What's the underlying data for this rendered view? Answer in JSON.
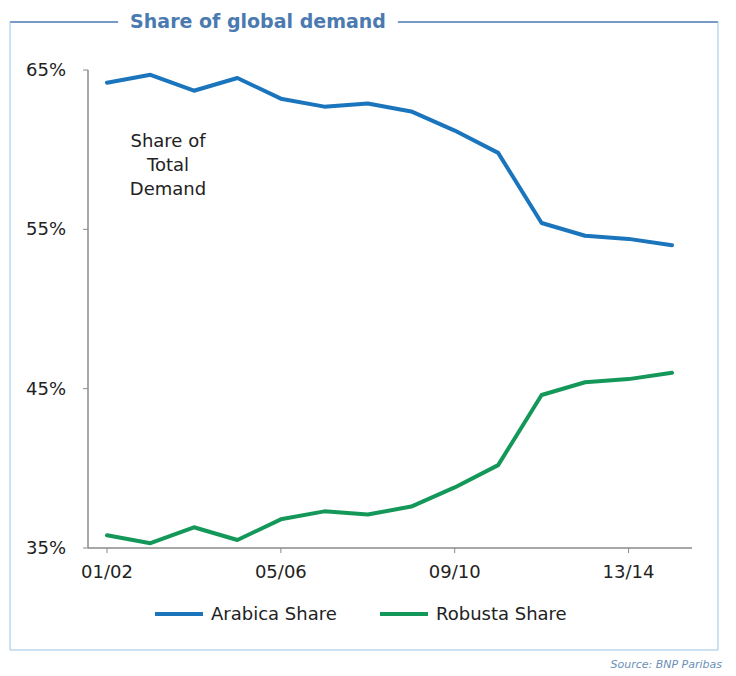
{
  "chart_data": {
    "type": "line",
    "title": "Share of global demand",
    "annotations": [
      "Share of",
      "Total",
      "Demand"
    ],
    "source": "Source: BNP Paribas",
    "categories": [
      "01/02",
      null,
      null,
      null,
      "05/06",
      null,
      null,
      null,
      "09/10",
      null,
      null,
      null,
      "13/14",
      null
    ],
    "series": [
      {
        "name": "Arabica Share",
        "color": "#1b75bc",
        "values": [
          64.2,
          64.7,
          63.7,
          64.5,
          63.2,
          62.7,
          62.9,
          62.4,
          61.2,
          59.8,
          55.4,
          54.6,
          54.4,
          54.0
        ]
      },
      {
        "name": "Robusta Share",
        "color": "#14985a",
        "values": [
          35.8,
          35.3,
          36.3,
          35.5,
          36.8,
          37.3,
          37.1,
          37.6,
          38.8,
          40.2,
          44.6,
          45.4,
          45.6,
          46.0
        ]
      }
    ],
    "ylim": [
      35,
      65
    ],
    "yticks": [
      {
        "value": 35,
        "label": "35%"
      },
      {
        "value": 45,
        "label": "45%"
      },
      {
        "value": 55,
        "label": "55%"
      },
      {
        "value": 65,
        "label": "65%"
      }
    ],
    "grid": false,
    "legend": "bottom"
  }
}
